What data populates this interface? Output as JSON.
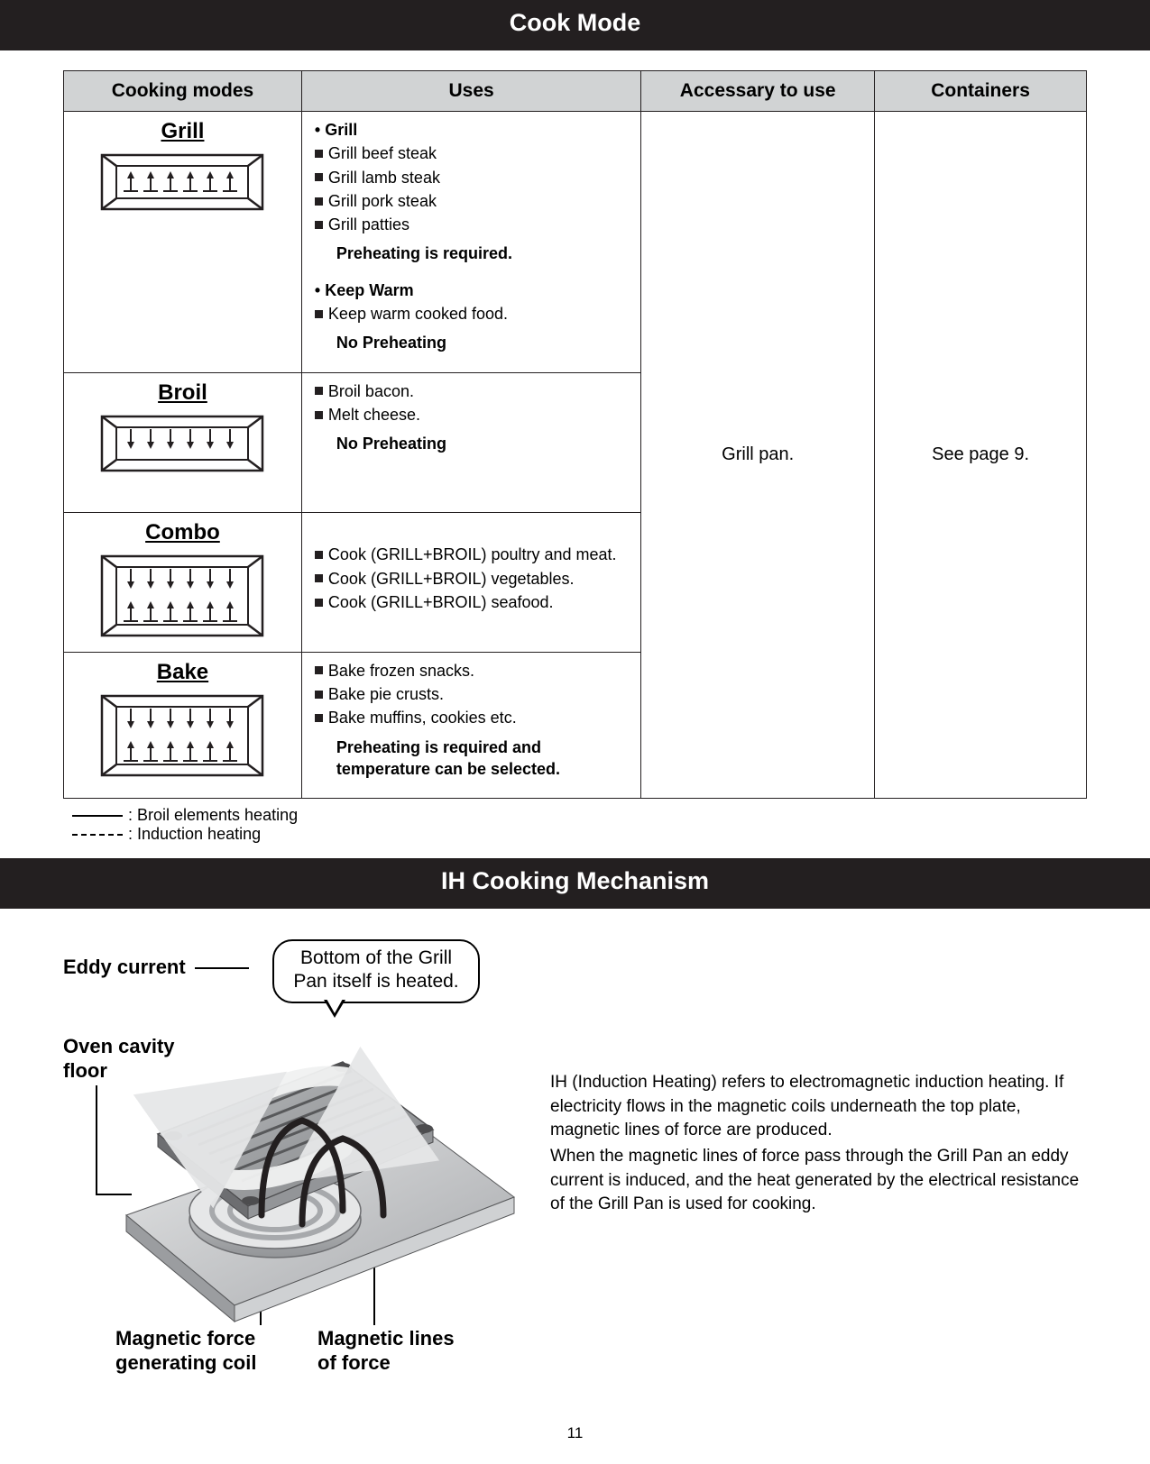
{
  "header1": "Cook Mode",
  "header2": "IH Cooking Mechanism",
  "page_number": "11",
  "table": {
    "columns": [
      "Cooking modes",
      "Uses",
      "Accessary to use",
      "Containers"
    ],
    "accessory": "Grill pan.",
    "container": "See page 9.",
    "rows": [
      {
        "mode": "Grill",
        "graphic": {
          "top_broil": false,
          "bottom_induction": true
        },
        "uses_html": [
          {
            "t": "dot",
            "v": "Grill"
          },
          {
            "t": "sq",
            "v": "Grill beef steak"
          },
          {
            "t": "sq",
            "v": "Grill lamb steak"
          },
          {
            "t": "sq",
            "v": "Grill pork steak"
          },
          {
            "t": "sq",
            "v": "Grill patties"
          },
          {
            "t": "note",
            "v": "Preheating is required."
          },
          {
            "t": "gap"
          },
          {
            "t": "dot",
            "v": "Keep Warm",
            "bold": true
          },
          {
            "t": "sq",
            "v": "Keep warm cooked food."
          },
          {
            "t": "note",
            "v": "No Preheating"
          }
        ]
      },
      {
        "mode": "Broil",
        "graphic": {
          "top_broil": true,
          "bottom_induction": false
        },
        "uses_html": [
          {
            "t": "sq",
            "v": "Broil bacon."
          },
          {
            "t": "sq",
            "v": "Melt cheese."
          },
          {
            "t": "note",
            "v": "No Preheating"
          }
        ]
      },
      {
        "mode": "Combo",
        "graphic": {
          "top_broil": true,
          "bottom_induction": true
        },
        "uses_html": [
          {
            "t": "sq",
            "v": "Cook (GRILL+BROIL) poultry and meat."
          },
          {
            "t": "sq",
            "v": "Cook (GRILL+BROIL) vegetables."
          },
          {
            "t": "sq",
            "v": "Cook (GRILL+BROIL) seafood."
          }
        ]
      },
      {
        "mode": "Bake",
        "graphic": {
          "top_broil": true,
          "bottom_induction": true
        },
        "uses_html": [
          {
            "t": "sq",
            "v": "Bake frozen snacks."
          },
          {
            "t": "sq",
            "v": "Bake pie crusts."
          },
          {
            "t": "sq",
            "v": "Bake muffins, cookies etc."
          },
          {
            "t": "note",
            "v": "Preheating is required and temperature can be selected."
          }
        ]
      }
    ]
  },
  "legend": {
    "solid": ": Broil elements heating",
    "dashed": ": Induction heating"
  },
  "ih": {
    "labels": {
      "eddy": "Eddy current",
      "bubble_l1": "Bottom of the Grill",
      "bubble_l2": "Pan itself is heated.",
      "cavity_l1": "Oven cavity",
      "cavity_l2": "floor",
      "coil_l1": "Magnetic force",
      "coil_l2": "generating coil",
      "lines_l1": "Magnetic lines",
      "lines_l2": "of force"
    },
    "text_p1": "IH (Induction Heating) refers to electromagnetic induction heating. If electricity flows in the magnetic coils underneath the top plate, magnetic lines of force are produced.",
    "text_p2": "When the magnetic lines of force pass through the Grill Pan an eddy current is induced, and the heat generated by the electrical resistance of the Grill Pan is used for cooking."
  },
  "colors": {
    "bar_bg": "#231f20",
    "th_bg": "#d1d3d4",
    "pan_fill": "#a7a9ac",
    "pan_dark": "#6d6e71",
    "pan_light": "#d1d3d4",
    "floor": "#bcbec0"
  }
}
